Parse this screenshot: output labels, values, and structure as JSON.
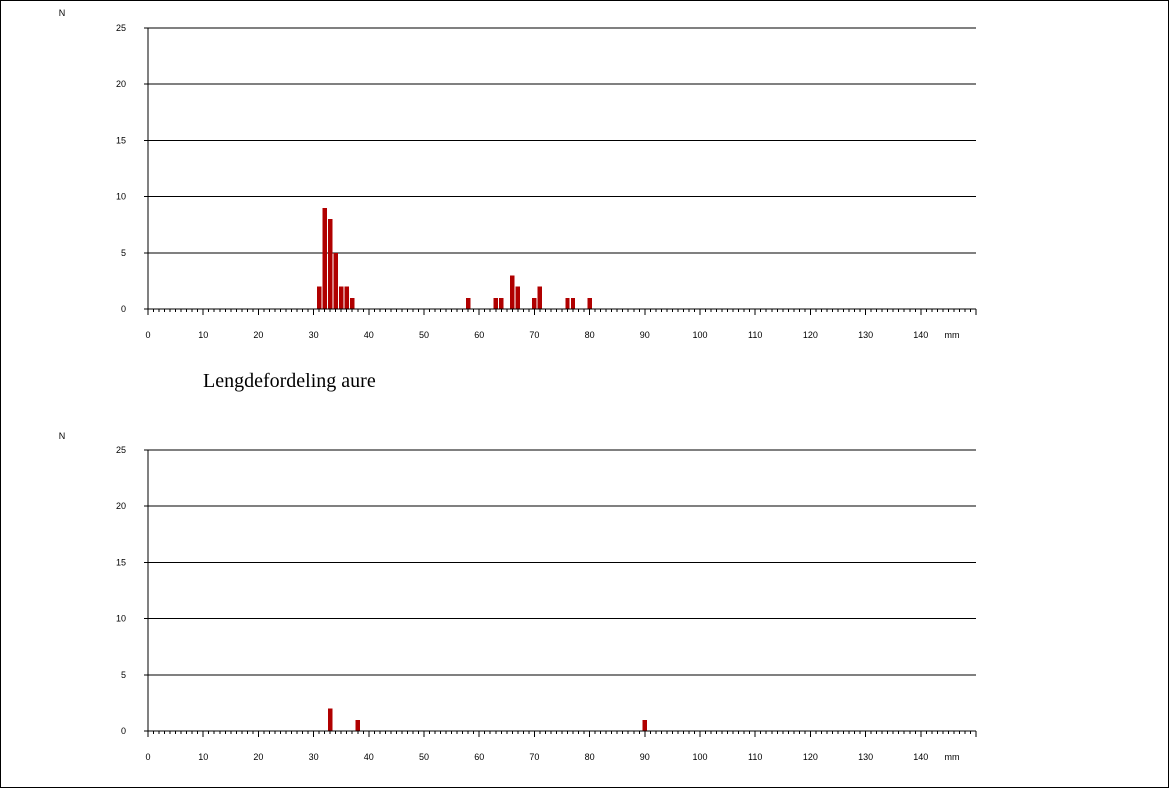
{
  "colors": {
    "bar": "#b00000",
    "axis": "#000000",
    "grid": "#000000",
    "background": "#ffffff"
  },
  "chart_data": [
    {
      "type": "bar",
      "title": "",
      "ylabel": "N",
      "xunit": "mm",
      "xlim": [
        0,
        150
      ],
      "ylim": [
        0,
        25
      ],
      "yticks": [
        0,
        5,
        10,
        15,
        20,
        25
      ],
      "xticks": [
        0,
        10,
        20,
        30,
        40,
        50,
        60,
        70,
        80,
        90,
        100,
        110,
        120,
        130,
        140
      ],
      "grid": true,
      "x": [
        31,
        32,
        33,
        34,
        35,
        36,
        37,
        58,
        63,
        64,
        66,
        67,
        70,
        71,
        76,
        77,
        80
      ],
      "values": [
        2,
        9,
        8,
        5,
        2,
        2,
        1,
        1,
        1,
        1,
        3,
        2,
        1,
        2,
        1,
        1,
        1
      ]
    },
    {
      "type": "bar",
      "title": "Lengdefordeling aure",
      "ylabel": "N",
      "xunit": "mm",
      "xlim": [
        0,
        150
      ],
      "ylim": [
        0,
        25
      ],
      "yticks": [
        0,
        5,
        10,
        15,
        20,
        25
      ],
      "xticks": [
        0,
        10,
        20,
        30,
        40,
        50,
        60,
        70,
        80,
        90,
        100,
        110,
        120,
        130,
        140
      ],
      "grid": true,
      "x": [
        33,
        38,
        90
      ],
      "values": [
        2,
        1,
        1
      ]
    }
  ]
}
